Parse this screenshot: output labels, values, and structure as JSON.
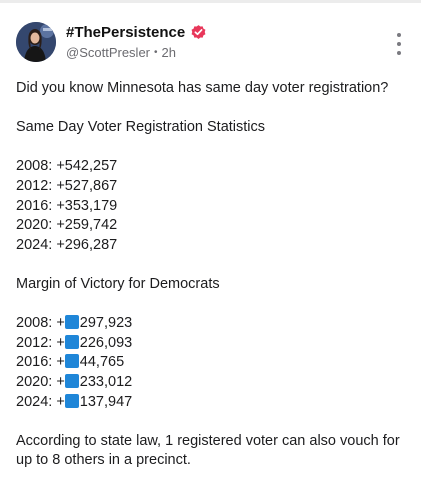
{
  "post": {
    "author": {
      "display_name": "#ThePersistence",
      "handle": "@ScottPresler",
      "separator": "•",
      "time": "2h"
    },
    "body": {
      "intro": "Did you know Minnesota has same day voter registration?",
      "registration_heading": "Same Day Voter Registration Statistics",
      "registration_stats": [
        {
          "text": "2008: +542,257"
        },
        {
          "text": "2012: +527,867"
        },
        {
          "text": "2016: +353,179"
        },
        {
          "text": "2020: +259,742"
        },
        {
          "text": "2024: +296,287"
        }
      ],
      "margin_heading": "Margin of Victory for Democrats",
      "margin_stats": [
        {
          "prefix": "2008: +",
          "value": "297,923"
        },
        {
          "prefix": "2012: +",
          "value": "226,093"
        },
        {
          "prefix": "2016: +",
          "value": "44,765"
        },
        {
          "prefix": "2020: +",
          "value": "233,012"
        },
        {
          "prefix": "2024: +",
          "value": "137,947"
        }
      ],
      "closing": "According to state law, 1 registered voter can also vouch for up to 8 others in a precinct."
    },
    "icons": {
      "verified": "verified-badge-icon",
      "more": "more-vertical-icon",
      "inline_marker": "blue-square-emoji"
    },
    "colors": {
      "verified_badge": "#e8375a",
      "blue_square": "#1f86d8"
    }
  }
}
